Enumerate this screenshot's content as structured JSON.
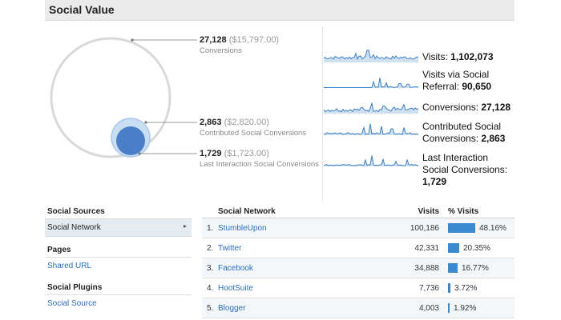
{
  "header": {
    "title": "Social Value"
  },
  "venn": {
    "conversions": {
      "count": "27,128",
      "value": "($15,797.00)",
      "label": "Conversions"
    },
    "contributed": {
      "count": "2,863",
      "value": "($2,820.00)",
      "label": "Contributed Social Conversions"
    },
    "last_interaction": {
      "count": "1,729",
      "value": "($1,723.00)",
      "label": "Last Interaction Social Conversions"
    },
    "colors": {
      "outer": "#d9d9d9",
      "contributed": "#c9def2",
      "last_interaction": "#4a7fc7"
    }
  },
  "sparklines": [
    {
      "label": "Visits:",
      "value": "1,102,073"
    },
    {
      "label": "Visits via Social Referral:",
      "value": "90,650"
    },
    {
      "label": "Conversions:",
      "value": "27,128"
    },
    {
      "label": "Contributed Social Conversions:",
      "value": "2,863"
    },
    {
      "label": "Last Interaction Social Conversions:",
      "value": "1,729"
    }
  ],
  "sidebar": {
    "sections": [
      {
        "title": "Social Sources",
        "items": [
          "Social Network"
        ]
      },
      {
        "title": "Pages",
        "items": [
          "Shared URL"
        ]
      },
      {
        "title": "Social Plugins",
        "items": [
          "Social Source"
        ]
      }
    ],
    "active_arrow": "▸"
  },
  "table": {
    "headers": {
      "network": "Social Network",
      "visits": "Visits",
      "pct": "% Visits"
    },
    "rows": [
      {
        "idx": "1.",
        "name": "StumbleUpon",
        "visits": "100,186",
        "pct": "48.16%",
        "share": 0.4816
      },
      {
        "idx": "2.",
        "name": "Twitter",
        "visits": "42,331",
        "pct": "20.35%",
        "share": 0.2035
      },
      {
        "idx": "3.",
        "name": "Facebook",
        "visits": "34,888",
        "pct": "16.77%",
        "share": 0.1677
      },
      {
        "idx": "4.",
        "name": "HootSuite",
        "visits": "7,736",
        "pct": "3.72%",
        "share": 0.0372
      },
      {
        "idx": "5.",
        "name": "Blogger",
        "visits": "4,003",
        "pct": "1.92%",
        "share": 0.0192
      }
    ],
    "bar_color": "#3b8ad0"
  }
}
